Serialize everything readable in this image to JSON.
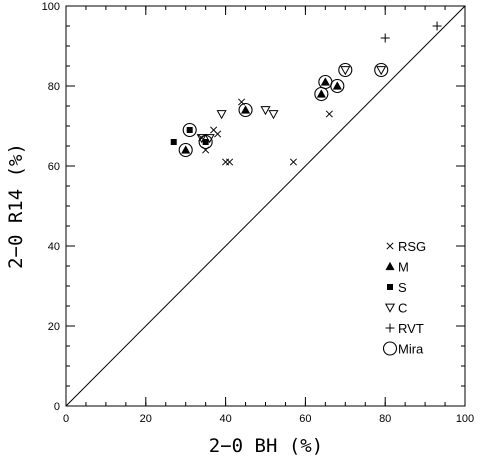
{
  "chart_data": {
    "type": "scatter",
    "title": "",
    "xlabel": "2−0 BH (%)",
    "ylabel": "2−0 R14 (%)",
    "xlim": [
      0,
      100
    ],
    "ylim": [
      0,
      100
    ],
    "x_ticks": [
      0,
      20,
      40,
      60,
      80,
      100
    ],
    "y_ticks": [
      0,
      20,
      40,
      60,
      80,
      100
    ],
    "x_minor_step": 5,
    "y_minor_step": 5,
    "grid": false,
    "reference_line": {
      "type": "identity",
      "from": [
        0,
        0
      ],
      "to": [
        100,
        100
      ]
    },
    "legend_placement": "lower-right",
    "series": [
      {
        "name": "RSG",
        "marker": "cross-x",
        "points": [
          [
            34,
            67
          ],
          [
            35,
            64
          ],
          [
            37,
            69
          ],
          [
            38,
            68
          ],
          [
            40,
            61
          ],
          [
            41,
            61
          ],
          [
            44,
            76
          ],
          [
            57,
            61
          ],
          [
            66,
            73
          ]
        ]
      },
      {
        "name": "M",
        "marker": "filled-triangle-up",
        "points": [
          [
            30,
            64
          ],
          [
            45,
            74
          ],
          [
            64,
            78
          ],
          [
            65,
            81
          ],
          [
            68,
            80
          ]
        ]
      },
      {
        "name": "S",
        "marker": "filled-square",
        "points": [
          [
            27,
            66
          ],
          [
            31,
            69
          ],
          [
            35,
            66
          ]
        ]
      },
      {
        "name": "C",
        "marker": "open-triangle-down",
        "points": [
          [
            34,
            67
          ],
          [
            36,
            67
          ],
          [
            39,
            73
          ],
          [
            50,
            74
          ],
          [
            52,
            73
          ],
          [
            70,
            84
          ],
          [
            79,
            84
          ]
        ]
      },
      {
        "name": "RVT",
        "marker": "plus",
        "points": [
          [
            80,
            92
          ],
          [
            93,
            95
          ]
        ]
      },
      {
        "name": "Mira",
        "marker": "open-circle",
        "points": [
          [
            30,
            64
          ],
          [
            31,
            69
          ],
          [
            35,
            66
          ],
          [
            45,
            74
          ],
          [
            64,
            78
          ],
          [
            65,
            81
          ],
          [
            68,
            80
          ],
          [
            70,
            84
          ],
          [
            79,
            84
          ]
        ]
      }
    ]
  }
}
